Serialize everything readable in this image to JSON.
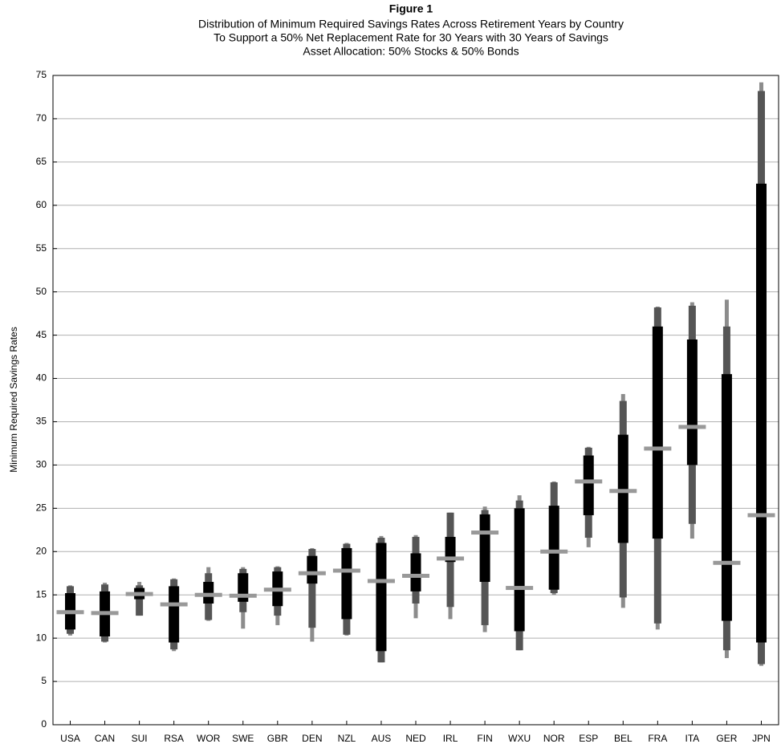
{
  "chart_data": {
    "type": "range",
    "title": "Figure 1",
    "subtitle": [
      "Distribution of Minimum Required Savings Rates Across Retirement Years by Country",
      "To Support a 50% Net Replacement Rate for 30 Years with 30 Years of Savings",
      "Asset Allocation: 50% Stocks & 50% Bonds"
    ],
    "y_label": "Minimum Required Savings Rates",
    "categories": [
      "USA",
      "CAN",
      "SUI",
      "RSA",
      "WOR",
      "SWE",
      "GBR",
      "DEN",
      "NZL",
      "AUS",
      "NED",
      "IRL",
      "FIN",
      "WXU",
      "NOR",
      "ESP",
      "BEL",
      "FRA",
      "ITA",
      "GER",
      "JPN"
    ],
    "series": [
      {
        "color": "#8c8c8c",
        "values": [
          10.3,
          9.5,
          12.6,
          8.5,
          12,
          11.1,
          11.5,
          9.6,
          10.3,
          7.2,
          12.3,
          12.2,
          10.7,
          8.6,
          15,
          20.5,
          13.5,
          11,
          21.5,
          7.7,
          6.8
        ]
      },
      {
        "color": "#555555",
        "values": [
          10.5,
          9.6,
          12.6,
          8.7,
          12.1,
          13,
          12.6,
          11.2,
          10.4,
          7.2,
          14,
          13.6,
          11.5,
          8.6,
          15.2,
          21.6,
          14.7,
          11.7,
          23.2,
          8.6,
          7
        ]
      },
      {
        "color": "#000000",
        "values": [
          11,
          10.2,
          14.5,
          9.5,
          14,
          14.2,
          13.7,
          16.3,
          12.2,
          8.5,
          15.4,
          18.8,
          16.5,
          10.8,
          15.6,
          24.2,
          21,
          21.5,
          30,
          12,
          9.5
        ]
      },
      {
        "color": "#999999",
        "values": [
          13,
          12.9,
          15.1,
          13.9,
          15,
          14.9,
          15.6,
          17.5,
          17.8,
          16.6,
          17.2,
          19.2,
          22.2,
          15.8,
          20,
          28.1,
          27,
          31.9,
          34.4,
          18.7,
          24.2
        ]
      },
      {
        "color": "#000000",
        "values": [
          15.2,
          15.4,
          15.8,
          16,
          16.5,
          17.5,
          17.7,
          19.5,
          20.4,
          21,
          19.8,
          21.7,
          24.3,
          25,
          25.3,
          31.1,
          33.5,
          46,
          44.5,
          40.5,
          62.5
        ]
      },
      {
        "color": "#555555",
        "values": [
          16,
          16.2,
          16.1,
          16.8,
          17.5,
          18,
          18.2,
          20.3,
          20.9,
          21.6,
          21.7,
          24.5,
          24.8,
          25.9,
          28,
          32,
          37.4,
          48.2,
          48.4,
          46,
          73.2
        ]
      },
      {
        "color": "#8c8c8c",
        "values": [
          16.1,
          16.4,
          16.5,
          16.9,
          18.2,
          18.2,
          18.3,
          20.4,
          21,
          21.8,
          21.9,
          24.5,
          25.2,
          26.5,
          28.1,
          32.1,
          38.2,
          48.3,
          48.8,
          49.1,
          74.2
        ]
      }
    ],
    "ylim": [
      0,
      75
    ],
    "yticks": [
      0,
      5,
      10,
      15,
      20,
      25,
      30,
      35,
      40,
      45,
      50,
      55,
      60,
      65,
      70,
      75
    ],
    "grid": true
  }
}
